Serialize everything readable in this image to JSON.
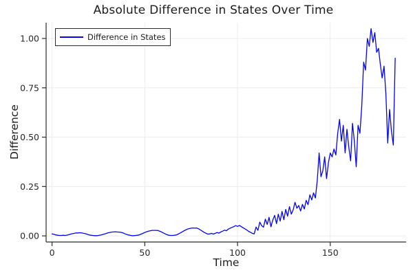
{
  "chart_data": {
    "type": "line",
    "title": "Absolute Difference in States Over Time",
    "xlabel": "Time",
    "ylabel": "Difference",
    "xlim": [
      -3.2,
      190.9
    ],
    "ylim": [
      -0.031,
      1.08
    ],
    "grid": "on",
    "legend_position": "top-left",
    "xticks": {
      "values": [
        0,
        50,
        100,
        150
      ],
      "labels": [
        "0",
        "50",
        "100",
        "150"
      ]
    },
    "yticks": {
      "values": [
        0,
        0.25,
        0.5,
        0.75,
        1.0
      ],
      "labels": [
        "0.00",
        "0.25",
        "0.50",
        "0.75",
        "1.00"
      ]
    },
    "series": [
      {
        "name": "Difference in States",
        "color": "#0000ff",
        "x_start": 0,
        "x_step": 1,
        "values": [
          0.01,
          0.008,
          0.005,
          0.003,
          0.002,
          0.002,
          0.003,
          0.002,
          0.004,
          0.006,
          0.009,
          0.011,
          0.013,
          0.015,
          0.015,
          0.016,
          0.015,
          0.013,
          0.011,
          0.008,
          0.005,
          0.003,
          0.002,
          0.001,
          0.001,
          0.002,
          0.004,
          0.006,
          0.009,
          0.012,
          0.015,
          0.017,
          0.019,
          0.02,
          0.021,
          0.02,
          0.019,
          0.018,
          0.016,
          0.012,
          0.008,
          0.005,
          0.003,
          0.001,
          0.001,
          0.002,
          0.003,
          0.005,
          0.009,
          0.013,
          0.017,
          0.021,
          0.024,
          0.026,
          0.028,
          0.028,
          0.028,
          0.027,
          0.024,
          0.02,
          0.015,
          0.01,
          0.006,
          0.003,
          0.002,
          0.002,
          0.003,
          0.005,
          0.009,
          0.014,
          0.019,
          0.025,
          0.03,
          0.034,
          0.037,
          0.039,
          0.04,
          0.039,
          0.04,
          0.036,
          0.03,
          0.024,
          0.018,
          0.013,
          0.009,
          0.01,
          0.013,
          0.009,
          0.013,
          0.017,
          0.014,
          0.02,
          0.024,
          0.029,
          0.026,
          0.034,
          0.039,
          0.043,
          0.047,
          0.052,
          0.048,
          0.053,
          0.047,
          0.041,
          0.036,
          0.03,
          0.023,
          0.018,
          0.013,
          0.01,
          0.045,
          0.028,
          0.07,
          0.052,
          0.044,
          0.085,
          0.058,
          0.094,
          0.046,
          0.08,
          0.104,
          0.062,
          0.11,
          0.075,
          0.124,
          0.082,
          0.134,
          0.1,
          0.148,
          0.11,
          0.132,
          0.17,
          0.14,
          0.154,
          0.126,
          0.16,
          0.136,
          0.18,
          0.158,
          0.208,
          0.182,
          0.218,
          0.192,
          0.28,
          0.42,
          0.3,
          0.33,
          0.4,
          0.29,
          0.37,
          0.42,
          0.4,
          0.44,
          0.41,
          0.52,
          0.59,
          0.48,
          0.56,
          0.42,
          0.54,
          0.45,
          0.38,
          0.57,
          0.48,
          0.35,
          0.56,
          0.52,
          0.66,
          0.88,
          0.84,
          1.0,
          0.96,
          1.05,
          0.98,
          1.03,
          0.93,
          0.95,
          0.87,
          0.8,
          0.86,
          0.72,
          0.47,
          0.64,
          0.53,
          0.46,
          0.9
        ]
      }
    ],
    "colors": {
      "line": "#0000ff",
      "grid": "#ececec",
      "axis": "#2a2a2a",
      "tick_text": "#262626",
      "title_text": "#1b1b1b",
      "background": "#ffffff"
    }
  }
}
